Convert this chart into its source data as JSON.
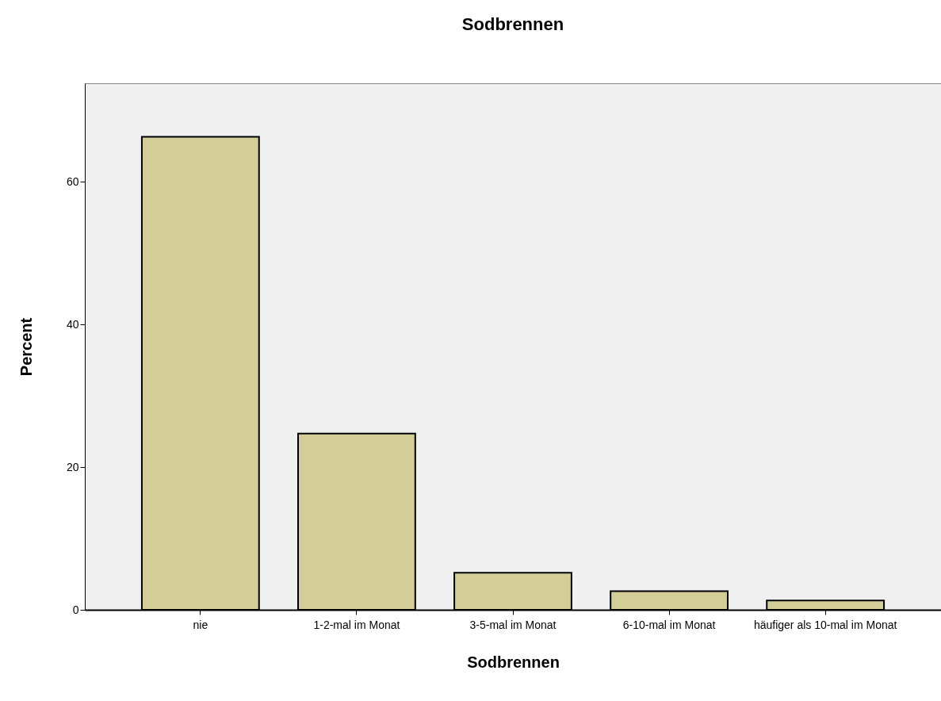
{
  "chart_data": {
    "type": "bar",
    "title": "Sodbrennen",
    "xlabel": "Sodbrennen",
    "ylabel": "Percent",
    "categories": [
      "nie",
      "1-2-mal im Monat",
      "3-5-mal im Monat",
      "6-10-mal im Monat",
      "häufiger als 10-mal im Monat"
    ],
    "values": [
      66.3,
      24.7,
      5.2,
      2.6,
      1.3
    ],
    "color": "#d3ce97",
    "ylim": [
      0,
      73.8
    ],
    "yticks": [
      0,
      20,
      40,
      60
    ],
    "grid": false
  }
}
